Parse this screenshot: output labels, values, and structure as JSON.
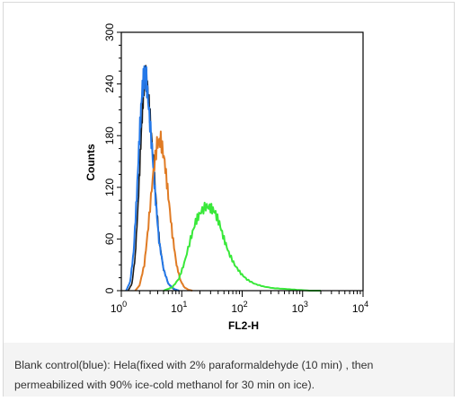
{
  "caption": {
    "text": "Blank control(blue): Hela(fixed with 2% paraformaldehyde (10 min) , then permeabilized with 90% ice-cold methanol for 30 min on ice)."
  },
  "chart_data": {
    "type": "line",
    "title": "",
    "xlabel": "FL2-H",
    "ylabel": "Counts",
    "xscale": "log",
    "xlim": [
      1,
      10000
    ],
    "ylim": [
      0,
      300
    ],
    "x_ticks": [
      {
        "value": 1,
        "base": "10",
        "exp": "0"
      },
      {
        "value": 10,
        "base": "10",
        "exp": "1"
      },
      {
        "value": 100,
        "base": "10",
        "exp": "2"
      },
      {
        "value": 1000,
        "base": "10",
        "exp": "3"
      },
      {
        "value": 10000,
        "base": "10",
        "exp": "4"
      }
    ],
    "y_ticks": [
      "0",
      "60",
      "120",
      "180",
      "240",
      "300"
    ],
    "y_tick_values": [
      0,
      60,
      120,
      180,
      240,
      300
    ],
    "legend": "none",
    "series": [
      {
        "color": "#1a1a1a",
        "x": [
          1.3,
          1.5,
          1.7,
          1.9,
          2.1,
          2.3,
          2.5,
          2.7,
          3.0,
          3.4,
          3.8,
          4.3,
          5.0,
          6.0,
          7.0,
          8.0
        ],
        "y": [
          0,
          8,
          40,
          100,
          170,
          225,
          250,
          240,
          200,
          150,
          100,
          55,
          25,
          8,
          3,
          0
        ]
      },
      {
        "color": "#2478e8",
        "x": [
          1.2,
          1.4,
          1.6,
          1.8,
          2.0,
          2.2,
          2.4,
          2.6,
          2.9,
          3.3,
          3.7,
          4.2,
          5.0,
          6.0,
          7.5,
          9.0
        ],
        "y": [
          0,
          10,
          45,
          110,
          180,
          230,
          252,
          245,
          205,
          155,
          105,
          58,
          25,
          8,
          2,
          0
        ]
      },
      {
        "color": "#e07b24",
        "x": [
          1.7,
          2.0,
          2.4,
          2.8,
          3.3,
          3.9,
          4.5,
          5.2,
          6.0,
          7.0,
          8.2,
          9.5,
          11.0,
          13.0,
          15.0
        ],
        "y": [
          0,
          6,
          30,
          75,
          130,
          170,
          175,
          150,
          110,
          65,
          30,
          12,
          4,
          1,
          0
        ]
      },
      {
        "color": "#39e83a",
        "x": [
          5.0,
          7.0,
          9.0,
          11.0,
          14.0,
          17.0,
          20.0,
          25.0,
          30.0,
          35.0,
          42.0,
          50.0,
          60.0,
          75.0,
          95.0,
          120.0,
          160.0,
          220.0,
          320.0,
          500.0,
          800.0,
          1300.0,
          2000.0
        ],
        "y": [
          0,
          4,
          14,
          32,
          60,
          80,
          90,
          98,
          96,
          92,
          78,
          60,
          44,
          30,
          20,
          13,
          8,
          5,
          3,
          2,
          1,
          0,
          0
        ]
      }
    ]
  }
}
